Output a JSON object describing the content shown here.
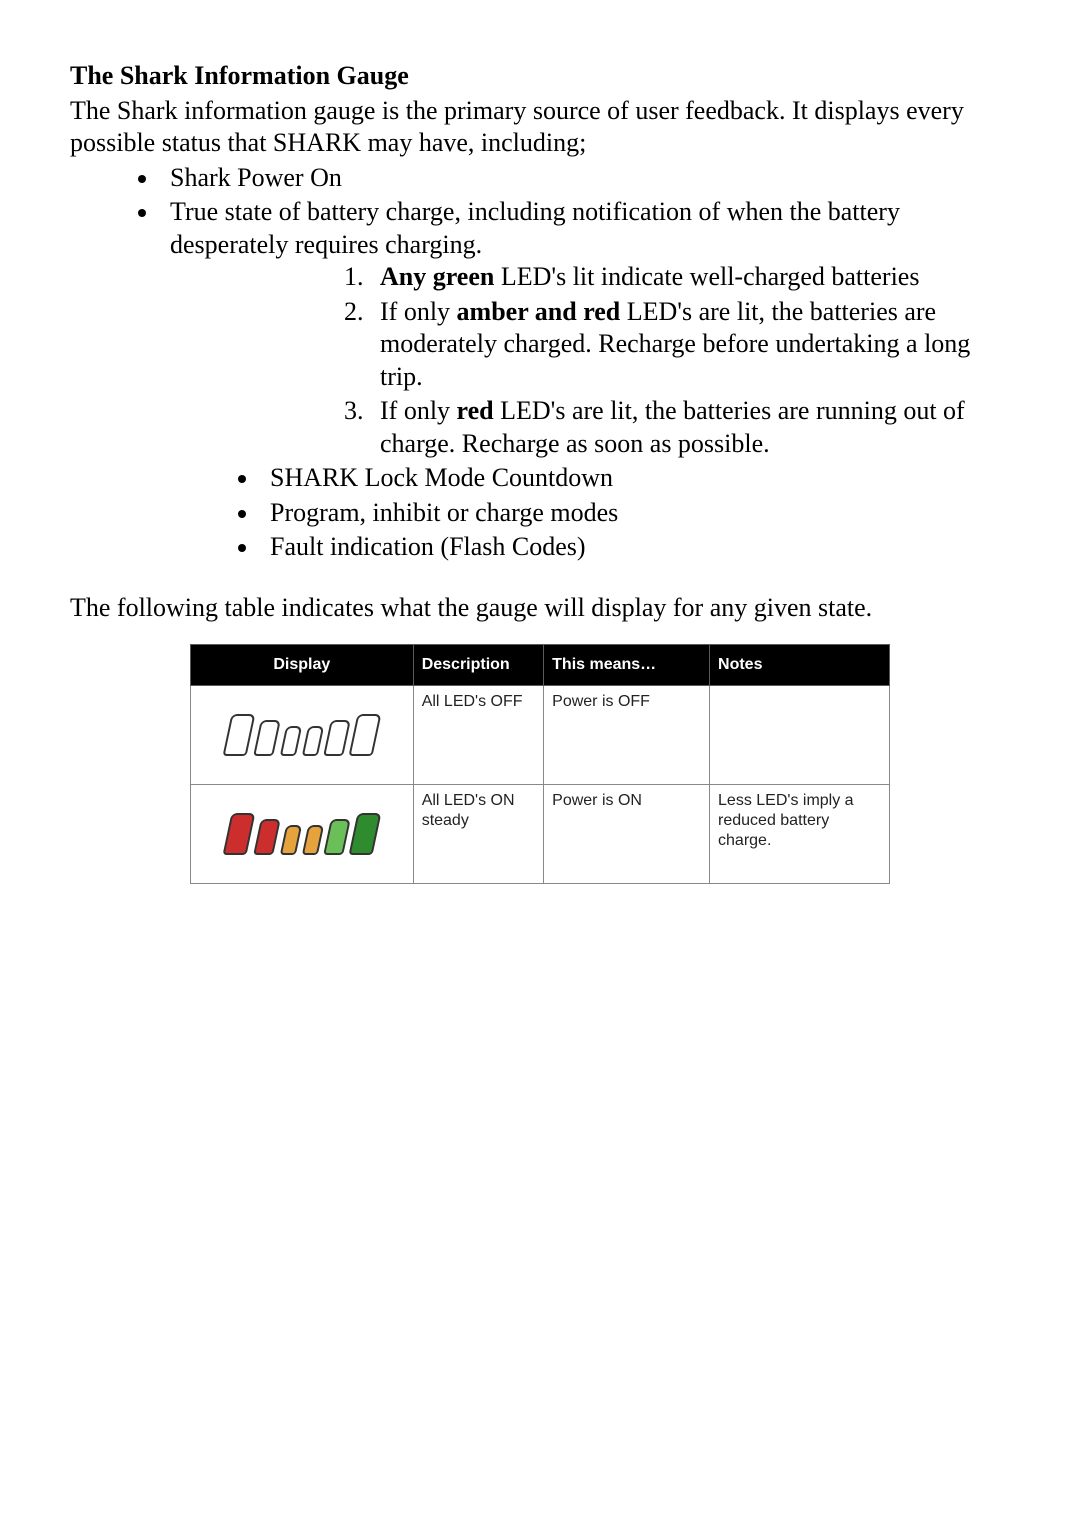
{
  "title": "The Shark Information Gauge",
  "intro": "The Shark information gauge is the primary source of user feedback. It displays every possible status that SHARK may have, including;",
  "bullets_top": [
    "Shark Power On",
    "True state of battery charge, including notification of when the battery desperately requires charging."
  ],
  "numbered": {
    "n1_bold": "Any green",
    "n1_rest": " LED's lit indicate well-charged batteries",
    "n2_pre": "If only ",
    "n2_bold": "amber and red",
    "n2_rest": " LED's are lit, the batteries are moderately charged. Recharge before undertaking a long trip.",
    "n3_pre": "If only ",
    "n3_bold": "red",
    "n3_rest": " LED's are lit, the batteries are running out of charge. Recharge as soon as possible."
  },
  "bullets_inner": [
    "SHARK Lock Mode Countdown",
    "Program, inhibit or charge modes",
    "Fault indication (Flash Codes)"
  ],
  "para_after": "The following table indicates what the gauge will display for any given state.",
  "table": {
    "headers": {
      "display": "Display",
      "description": "Description",
      "means": "This means…",
      "notes": "Notes"
    },
    "rows": [
      {
        "leds": {
          "sizes": [
            [
              24,
              42
            ],
            [
              20,
              36
            ],
            [
              16,
              30
            ],
            [
              16,
              30
            ],
            [
              20,
              36
            ],
            [
              24,
              42
            ]
          ],
          "classes": [
            "off",
            "off",
            "off",
            "off",
            "off",
            "off"
          ]
        },
        "description": "All LED's OFF",
        "means": "Power is OFF",
        "notes": ""
      },
      {
        "leds": {
          "sizes": [
            [
              24,
              42
            ],
            [
              20,
              36
            ],
            [
              16,
              30
            ],
            [
              16,
              30
            ],
            [
              20,
              36
            ],
            [
              24,
              42
            ]
          ],
          "classes": [
            "red",
            "red",
            "amber",
            "amber",
            "green1",
            "green3"
          ]
        },
        "description": "All LED's ON steady",
        "means": "Power is ON",
        "notes": "Less LED's imply a reduced battery charge."
      }
    ]
  }
}
